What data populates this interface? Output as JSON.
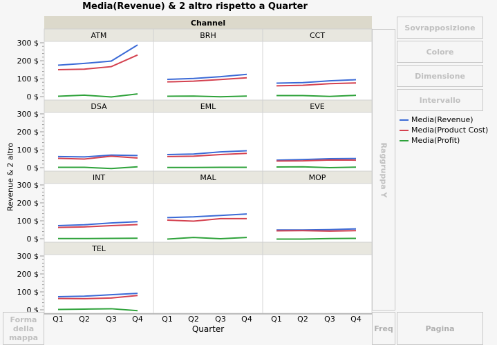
{
  "title": "Media(Revenue) & 2 altro rispetto a Quarter",
  "drop_zones": {
    "overlay": "Sovrapposizione",
    "color": "Colore",
    "size": "Dimensione",
    "interval": "Intervallo",
    "group_y": "Raggruppa Y",
    "map_shape": "Forma della mappa",
    "freq": "Freq",
    "page": "Pagina"
  },
  "chart_data": {
    "type": "line",
    "title": "Media(Revenue) & 2 altro rispetto a Quarter",
    "group_label": "Channel",
    "xlabel": "Quarter",
    "ylabel": "Revenue & 2 altro",
    "categories": [
      "Q1",
      "Q2",
      "Q3",
      "Q4"
    ],
    "ylim": [
      0,
      300
    ],
    "yticks": [
      "0 $",
      "100 $",
      "200 $",
      "300 $"
    ],
    "ytick_values": [
      0,
      100,
      200,
      300
    ],
    "grid": false,
    "legend_position": "right",
    "series_names": [
      "Media(Revenue)",
      "Media(Product Cost)",
      "Media(Profit)"
    ],
    "colors": [
      "#3b6ad6",
      "#d4414f",
      "#2ea23a"
    ],
    "panels": [
      {
        "name": "ATM",
        "Revenue": [
          175,
          185,
          198,
          288
        ],
        "Cost": [
          150,
          153,
          167,
          232
        ],
        "Profit": [
          2,
          8,
          -2,
          15
        ]
      },
      {
        "name": "BRH",
        "Revenue": [
          96,
          101,
          111,
          124
        ],
        "Cost": [
          82,
          86,
          95,
          105
        ],
        "Profit": [
          2,
          3,
          -1,
          3
        ]
      },
      {
        "name": "CCT",
        "Revenue": [
          75,
          78,
          88,
          94
        ],
        "Cost": [
          60,
          63,
          72,
          76
        ],
        "Profit": [
          6,
          6,
          1,
          7
        ]
      },
      {
        "name": "DSA",
        "Revenue": [
          62,
          60,
          70,
          68
        ],
        "Cost": [
          52,
          48,
          64,
          54
        ],
        "Profit": [
          2,
          2,
          -5,
          5
        ]
      },
      {
        "name": "EML",
        "Revenue": [
          73,
          76,
          88,
          94
        ],
        "Cost": [
          62,
          64,
          73,
          80
        ],
        "Profit": [
          1,
          1,
          2,
          2
        ]
      },
      {
        "name": "EVE",
        "Revenue": [
          42,
          45,
          50,
          51
        ],
        "Cost": [
          37,
          38,
          43,
          42
        ],
        "Profit": [
          4,
          5,
          0,
          3
        ]
      },
      {
        "name": "INT",
        "Revenue": [
          73,
          78,
          88,
          95
        ],
        "Cost": [
          63,
          66,
          73,
          79
        ],
        "Profit": [
          1,
          1,
          2,
          3
        ]
      },
      {
        "name": "MAL",
        "Revenue": [
          118,
          122,
          130,
          138
        ],
        "Cost": [
          104,
          98,
          112,
          112
        ],
        "Profit": [
          -2,
          7,
          0,
          7
        ]
      },
      {
        "name": "MOP",
        "Revenue": [
          49,
          49,
          51,
          55
        ],
        "Cost": [
          44,
          45,
          43,
          45
        ],
        "Profit": [
          -2,
          -2,
          1,
          2
        ]
      },
      {
        "name": "TEL",
        "Revenue": [
          73,
          76,
          84,
          92
        ],
        "Cost": [
          63,
          62,
          66,
          80
        ],
        "Profit": [
          2,
          4,
          6,
          -5
        ]
      }
    ]
  }
}
